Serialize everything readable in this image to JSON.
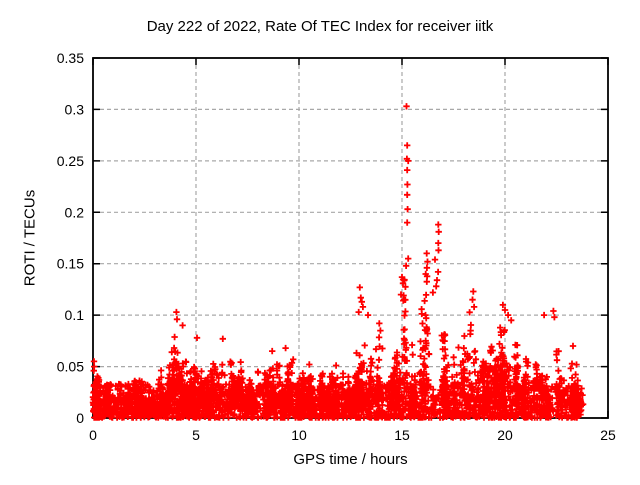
{
  "chart_data": {
    "type": "scatter",
    "title": "Day 222 of 2022, Rate Of TEC Index for receiver iitk",
    "xlabel": "GPS time / hours",
    "ylabel": "ROTI / TECUs",
    "xlim": [
      0,
      25
    ],
    "ylim": [
      0,
      0.35
    ],
    "xticks": [
      0,
      5,
      10,
      15,
      20,
      25
    ],
    "yticks": [
      0,
      0.05,
      0.1,
      0.15,
      0.2,
      0.25,
      0.3,
      0.35
    ],
    "xtick_labels": [
      "0",
      "5",
      "10",
      "15",
      "20",
      "25"
    ],
    "ytick_labels": [
      "0",
      "0.05",
      "0.1",
      "0.15",
      "0.2",
      "0.25",
      "0.3",
      "0.35"
    ],
    "grid": "dashed",
    "legend": "none",
    "marker": "plus",
    "colors": {
      "marker": "#ff0000",
      "grid": "#a8a8a8",
      "border": "#000000",
      "text": "#000000",
      "background": "#ffffff"
    },
    "data_x_range": [
      0,
      23.8
    ],
    "baseline_envelope": [
      [
        0.0,
        0.055
      ],
      [
        0.2,
        0.042
      ],
      [
        0.5,
        0.038
      ],
      [
        1.0,
        0.04
      ],
      [
        1.5,
        0.042
      ],
      [
        2.0,
        0.046
      ],
      [
        2.4,
        0.04
      ],
      [
        2.8,
        0.044
      ],
      [
        3.2,
        0.048
      ],
      [
        3.6,
        0.058
      ],
      [
        3.9,
        0.07
      ],
      [
        4.05,
        0.105
      ],
      [
        4.2,
        0.1
      ],
      [
        4.4,
        0.065
      ],
      [
        4.7,
        0.055
      ],
      [
        5.0,
        0.077
      ],
      [
        5.3,
        0.075
      ],
      [
        5.6,
        0.05
      ],
      [
        5.9,
        0.06
      ],
      [
        6.2,
        0.077
      ],
      [
        6.5,
        0.06
      ],
      [
        6.9,
        0.067
      ],
      [
        7.2,
        0.055
      ],
      [
        7.5,
        0.045
      ],
      [
        7.9,
        0.058
      ],
      [
        8.2,
        0.062
      ],
      [
        8.5,
        0.05
      ],
      [
        8.8,
        0.065
      ],
      [
        9.1,
        0.062
      ],
      [
        9.4,
        0.068
      ],
      [
        9.7,
        0.06
      ],
      [
        10.0,
        0.046
      ],
      [
        10.4,
        0.05
      ],
      [
        10.8,
        0.042
      ],
      [
        11.2,
        0.046
      ],
      [
        11.6,
        0.05
      ],
      [
        12.0,
        0.046
      ],
      [
        12.4,
        0.052
      ],
      [
        12.7,
        0.06
      ],
      [
        12.95,
        0.085
      ],
      [
        13.2,
        0.08
      ],
      [
        13.5,
        0.062
      ],
      [
        13.9,
        0.095
      ],
      [
        14.2,
        0.08
      ],
      [
        14.5,
        0.06
      ],
      [
        14.8,
        0.09
      ],
      [
        15.05,
        0.14
      ],
      [
        15.3,
        0.13
      ],
      [
        15.6,
        0.1
      ],
      [
        15.9,
        0.11
      ],
      [
        16.2,
        0.16
      ],
      [
        16.45,
        0.13
      ],
      [
        16.75,
        0.14
      ],
      [
        17.0,
        0.1
      ],
      [
        17.3,
        0.08
      ],
      [
        17.6,
        0.078
      ],
      [
        17.9,
        0.1
      ],
      [
        18.2,
        0.09
      ],
      [
        18.45,
        0.12
      ],
      [
        18.7,
        0.08
      ],
      [
        19.0,
        0.09
      ],
      [
        19.3,
        0.07
      ],
      [
        19.6,
        0.088
      ],
      [
        19.9,
        0.105
      ],
      [
        20.2,
        0.1
      ],
      [
        20.5,
        0.09
      ],
      [
        20.8,
        0.075
      ],
      [
        21.1,
        0.085
      ],
      [
        21.4,
        0.068
      ],
      [
        21.7,
        0.07
      ],
      [
        22.0,
        0.062
      ],
      [
        22.3,
        0.1
      ],
      [
        22.6,
        0.065
      ],
      [
        22.9,
        0.06
      ],
      [
        23.2,
        0.068
      ],
      [
        23.5,
        0.058
      ],
      [
        23.8,
        0.05
      ]
    ],
    "outliers": [
      [
        15.22,
        0.303
      ],
      [
        15.25,
        0.265
      ],
      [
        15.24,
        0.252
      ],
      [
        15.3,
        0.25
      ],
      [
        15.25,
        0.241
      ],
      [
        15.26,
        0.227
      ],
      [
        15.25,
        0.217
      ],
      [
        15.27,
        0.203
      ],
      [
        15.25,
        0.19
      ],
      [
        15.3,
        0.155
      ],
      [
        15.2,
        0.148
      ],
      [
        16.76,
        0.188
      ],
      [
        16.78,
        0.181
      ],
      [
        16.76,
        0.17
      ],
      [
        16.77,
        0.163
      ],
      [
        16.6,
        0.154
      ],
      [
        16.2,
        0.16
      ],
      [
        16.24,
        0.152
      ],
      [
        16.21,
        0.146
      ],
      [
        16.75,
        0.142
      ],
      [
        16.7,
        0.134
      ],
      [
        16.66,
        0.128
      ],
      [
        16.5,
        0.122
      ],
      [
        12.95,
        0.127
      ],
      [
        13.0,
        0.117
      ],
      [
        13.05,
        0.113
      ],
      [
        13.1,
        0.108
      ],
      [
        12.9,
        0.103
      ],
      [
        13.35,
        0.1
      ],
      [
        13.9,
        0.092
      ],
      [
        13.95,
        0.085
      ],
      [
        4.05,
        0.103
      ],
      [
        4.08,
        0.096
      ],
      [
        4.35,
        0.09
      ],
      [
        15.0,
        0.137
      ],
      [
        15.05,
        0.131
      ],
      [
        14.95,
        0.12
      ],
      [
        15.1,
        0.115
      ],
      [
        18.46,
        0.123
      ],
      [
        18.42,
        0.115
      ],
      [
        18.5,
        0.108
      ],
      [
        19.9,
        0.11
      ],
      [
        20.0,
        0.105
      ],
      [
        20.15,
        0.1
      ],
      [
        20.3,
        0.095
      ],
      [
        21.9,
        0.1
      ],
      [
        22.35,
        0.104
      ],
      [
        22.4,
        0.098
      ],
      [
        0.05,
        0.055
      ],
      [
        0.06,
        0.05
      ],
      [
        0.04,
        0.046
      ],
      [
        8.7,
        0.065
      ],
      [
        9.35,
        0.068
      ],
      [
        6.3,
        0.077
      ],
      [
        5.05,
        0.078
      ],
      [
        23.3,
        0.07
      ],
      [
        10.5,
        0.052
      ],
      [
        11.8,
        0.051
      ]
    ],
    "cloud": {
      "carpet_points": 1900,
      "tree_clusters": 280,
      "seed": 7,
      "carpet_ceiling": 0.033
    }
  }
}
